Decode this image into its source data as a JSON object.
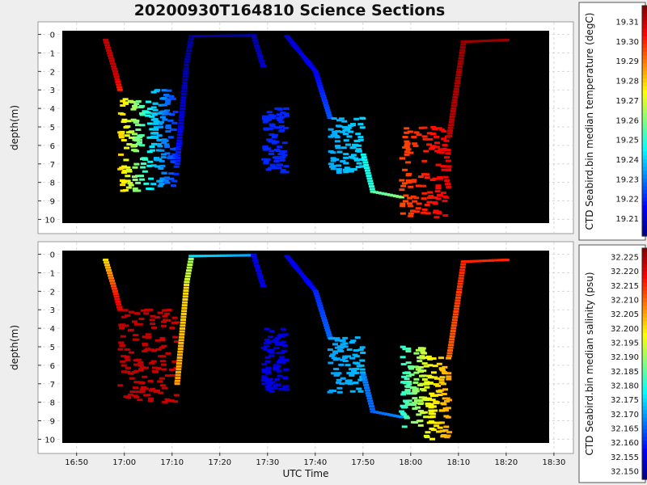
{
  "title": "20200930T164810 Science Sections",
  "chart_data": [
    {
      "type": "scatter",
      "ylabel": "depth(m)",
      "xlabel": "",
      "x_ticks": [
        "16:50",
        "17:00",
        "17:10",
        "17:20",
        "17:30",
        "17:40",
        "17:50",
        "18:00",
        "18:10",
        "18:20",
        "18:30"
      ],
      "xlim_minutes": [
        -3,
        99
      ],
      "ylim": [
        -0.2,
        10.2
      ],
      "y_inverted": true,
      "y_ticks": [
        0,
        1,
        2,
        3,
        4,
        5,
        6,
        7,
        8,
        9,
        10
      ],
      "grid": true,
      "background": "#000000",
      "colorbar": {
        "label": "CTD Seabird.bin median temperature (degC)",
        "ticks": [
          19.21,
          19.22,
          19.23,
          19.24,
          19.25,
          19.26,
          19.27,
          19.28,
          19.29,
          19.3,
          19.31
        ],
        "tick_labels": [
          "19.21",
          "19.22",
          "19.23",
          "19.24",
          "19.25",
          "19.26",
          "19.27",
          "19.28",
          "19.29",
          "19.30",
          "19.31"
        ],
        "range": [
          19.201,
          19.318
        ],
        "colormap": "jet"
      },
      "segments": [
        {
          "t": [
            6,
            8
          ],
          "d": [
            0.3,
            2.0
          ],
          "v": [
            19.31,
            19.31
          ]
        },
        {
          "t": [
            8,
            9
          ],
          "d": [
            2.0,
            3.0
          ],
          "v": [
            19.31,
            19.3
          ]
        },
        {
          "t": [
            9,
            16
          ],
          "d": [
            3.5,
            8.5
          ],
          "v": [
            19.28,
            19.24
          ]
        },
        {
          "t": [
            16,
            21
          ],
          "d": [
            3.0,
            8.2
          ],
          "v": [
            19.24,
            19.22
          ]
        },
        {
          "t": [
            21,
            23
          ],
          "d": [
            7.0,
            1.5
          ],
          "v": [
            19.22,
            19.205
          ]
        },
        {
          "t": [
            23,
            24
          ],
          "d": [
            1.5,
            0.1
          ],
          "v": [
            19.205,
            19.205
          ]
        },
        {
          "t": [
            24,
            37
          ],
          "d": [
            0.1,
            0.05
          ],
          "v": [
            19.205,
            19.205
          ]
        },
        {
          "t": [
            37,
            39
          ],
          "d": [
            0.05,
            1.7
          ],
          "v": [
            19.205,
            19.21
          ]
        },
        {
          "t": [
            39,
            44
          ],
          "d": [
            4.0,
            7.5
          ],
          "v": [
            19.22,
            19.22
          ]
        },
        {
          "t": [
            44,
            50
          ],
          "d": [
            0.1,
            2.0
          ],
          "v": [
            19.21,
            19.215
          ]
        },
        {
          "t": [
            50,
            53
          ],
          "d": [
            2.0,
            4.5
          ],
          "v": [
            19.215,
            19.225
          ]
        },
        {
          "t": [
            53,
            60
          ],
          "d": [
            4.5,
            7.5
          ],
          "v": [
            19.235,
            19.24
          ]
        },
        {
          "t": [
            60,
            62
          ],
          "d": [
            6.5,
            8.5
          ],
          "v": [
            19.245,
            19.25
          ]
        },
        {
          "t": [
            62,
            68
          ],
          "d": [
            8.5,
            8.8
          ],
          "v": [
            19.255,
            19.26
          ]
        },
        {
          "t": [
            68,
            78
          ],
          "d": [
            5.0,
            10.0
          ],
          "v": [
            19.295,
            19.305
          ]
        },
        {
          "t": [
            78,
            81
          ],
          "d": [
            5.5,
            0.4
          ],
          "v": [
            19.31,
            19.315
          ]
        },
        {
          "t": [
            81,
            90
          ],
          "d": [
            0.4,
            0.3
          ],
          "v": [
            19.315,
            19.315
          ]
        }
      ]
    },
    {
      "type": "scatter",
      "ylabel": "depth(m)",
      "xlabel": "UTC Time",
      "x_ticks": [
        "16:50",
        "17:00",
        "17:10",
        "17:20",
        "17:30",
        "17:40",
        "17:50",
        "18:00",
        "18:10",
        "18:20",
        "18:30"
      ],
      "xlim_minutes": [
        -3,
        99
      ],
      "ylim": [
        -0.2,
        10.2
      ],
      "y_inverted": true,
      "y_ticks": [
        0,
        1,
        2,
        3,
        4,
        5,
        6,
        7,
        8,
        9,
        10
      ],
      "grid": true,
      "background": "#000000",
      "colorbar": {
        "label": "CTD Seabird.bin median salinity (psu)",
        "ticks": [
          32.15,
          32.155,
          32.16,
          32.165,
          32.17,
          32.175,
          32.18,
          32.185,
          32.19,
          32.195,
          32.2,
          32.205,
          32.21,
          32.215,
          32.22,
          32.225
        ],
        "tick_labels": [
          "32.150",
          "32.155",
          "32.160",
          "32.165",
          "32.170",
          "32.175",
          "32.180",
          "32.185",
          "32.190",
          "32.195",
          "32.200",
          "32.205",
          "32.210",
          "32.215",
          "32.220",
          "32.225"
        ],
        "range": [
          32.147,
          32.228
        ],
        "colormap": "jet"
      },
      "segments": [
        {
          "t": [
            6,
            8
          ],
          "d": [
            0.3,
            2.0
          ],
          "v": [
            32.2,
            32.215
          ]
        },
        {
          "t": [
            8,
            9
          ],
          "d": [
            2.0,
            3.0
          ],
          "v": [
            32.215,
            32.22
          ]
        },
        {
          "t": [
            9,
            21
          ],
          "d": [
            3.0,
            8.0
          ],
          "v": [
            32.223,
            32.222
          ]
        },
        {
          "t": [
            21,
            23
          ],
          "d": [
            7.0,
            1.5
          ],
          "v": [
            32.205,
            32.2
          ]
        },
        {
          "t": [
            23,
            24
          ],
          "d": [
            1.5,
            0.1
          ],
          "v": [
            32.195,
            32.19
          ]
        },
        {
          "t": [
            24,
            37
          ],
          "d": [
            0.1,
            0.05
          ],
          "v": [
            32.175,
            32.17
          ]
        },
        {
          "t": [
            37,
            39
          ],
          "d": [
            0.05,
            1.7
          ],
          "v": [
            32.155,
            32.155
          ]
        },
        {
          "t": [
            39,
            44
          ],
          "d": [
            4.0,
            7.5
          ],
          "v": [
            32.155,
            32.155
          ]
        },
        {
          "t": [
            44,
            50
          ],
          "d": [
            0.1,
            2.0
          ],
          "v": [
            32.155,
            32.158
          ]
        },
        {
          "t": [
            50,
            53
          ],
          "d": [
            2.0,
            4.5
          ],
          "v": [
            32.16,
            32.165
          ]
        },
        {
          "t": [
            53,
            60
          ],
          "d": [
            4.5,
            7.5
          ],
          "v": [
            32.17,
            32.172
          ]
        },
        {
          "t": [
            60,
            62
          ],
          "d": [
            6.5,
            8.5
          ],
          "v": [
            32.168,
            32.165
          ]
        },
        {
          "t": [
            62,
            68
          ],
          "d": [
            8.5,
            8.8
          ],
          "v": [
            32.165,
            32.168
          ]
        },
        {
          "t": [
            68,
            73
          ],
          "d": [
            5.0,
            9.5
          ],
          "v": [
            32.18,
            32.195
          ]
        },
        {
          "t": [
            73,
            78
          ],
          "d": [
            5.5,
            10.0
          ],
          "v": [
            32.195,
            32.205
          ]
        },
        {
          "t": [
            78,
            81
          ],
          "d": [
            5.5,
            0.4
          ],
          "v": [
            32.21,
            32.215
          ]
        },
        {
          "t": [
            81,
            90
          ],
          "d": [
            0.4,
            0.3
          ],
          "v": [
            32.215,
            32.215
          ]
        }
      ]
    }
  ]
}
